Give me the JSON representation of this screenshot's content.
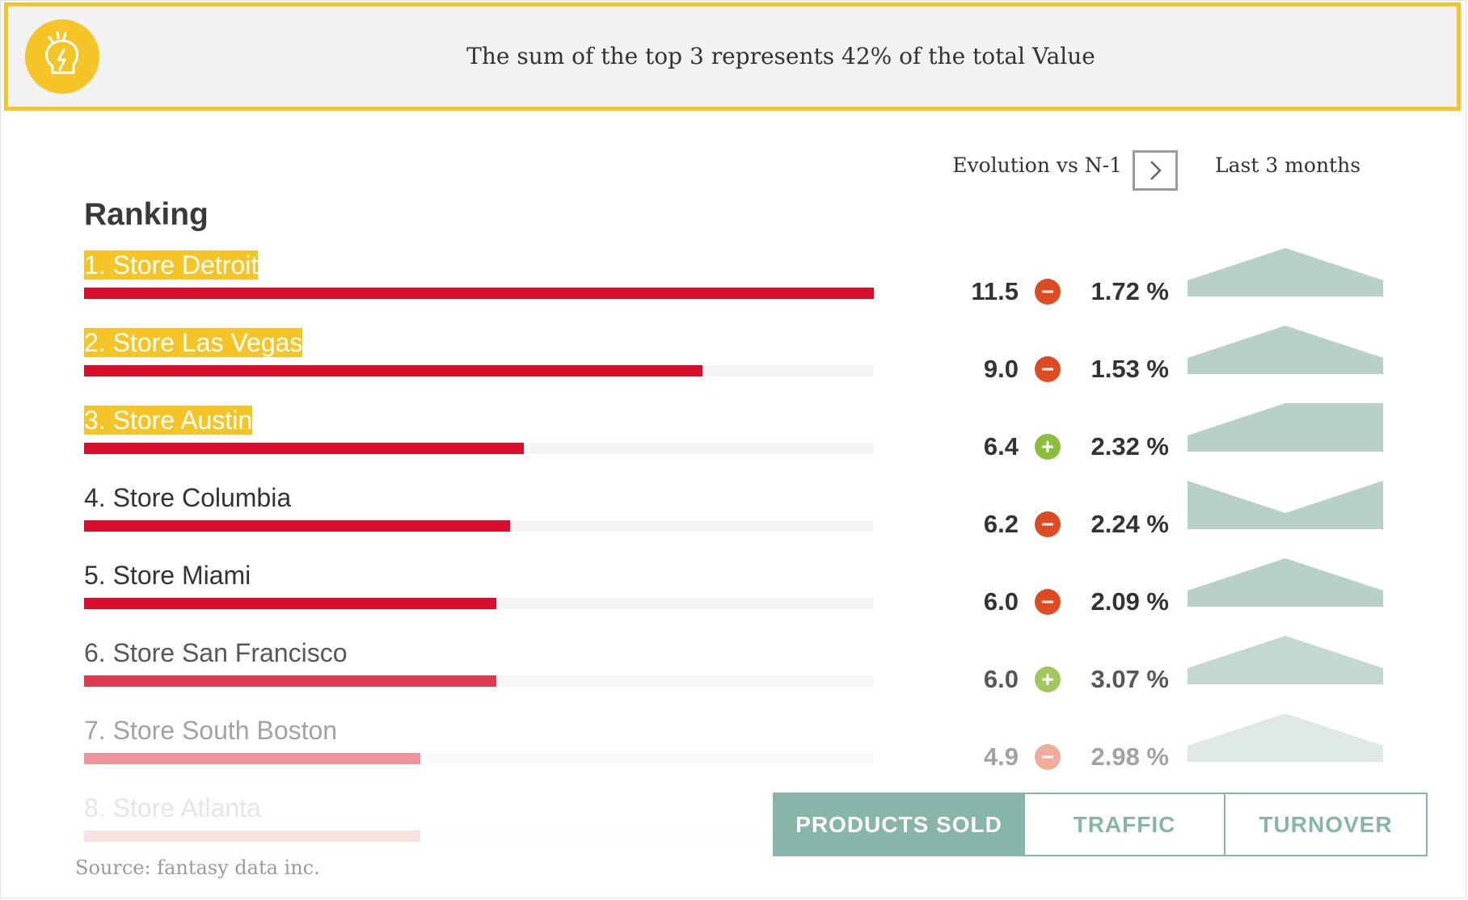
{
  "banner": {
    "text": "The sum of the top 3 represents 42% of the total Value",
    "logo_icon": "bulb-idea-icon"
  },
  "controls": {
    "evolution_label": "Evolution vs N-1",
    "evolution_button_icon": "chevron-right-icon",
    "period_label": "Last 3 months"
  },
  "ranking": {
    "title": "Ranking",
    "highlight_color": "#f5c528",
    "bar_color": "#d80f2c",
    "sparkline_color": "#b7d0c8",
    "positive_color": "#8cbd3c",
    "negative_color": "#de4a22",
    "max_value": 11.5,
    "rows": [
      {
        "label": "1. Store Detroit",
        "value": 11.5,
        "value_text": "11.5",
        "trend": "negative",
        "pct_text": "1.72 %",
        "highlighted": true,
        "opacity": 1.0,
        "spark": [
          0,
          1,
          0
        ]
      },
      {
        "label": "2. Store Las Vegas",
        "value": 9.0,
        "value_text": "9.0",
        "trend": "negative",
        "pct_text": "1.53 %",
        "highlighted": true,
        "opacity": 1.0,
        "spark": [
          0,
          1,
          0
        ]
      },
      {
        "label": "3. Store Austin",
        "value": 6.4,
        "value_text": "6.4",
        "trend": "positive",
        "pct_text": "2.32 %",
        "highlighted": true,
        "opacity": 1.0,
        "spark": [
          0,
          1,
          1
        ]
      },
      {
        "label": "4. Store Columbia",
        "value": 6.2,
        "value_text": "6.2",
        "trend": "negative",
        "pct_text": "2.24 %",
        "highlighted": false,
        "opacity": 1.0,
        "spark": [
          1,
          0,
          1
        ]
      },
      {
        "label": "5. Store Miami",
        "value": 6.0,
        "value_text": "6.0",
        "trend": "negative",
        "pct_text": "2.09 %",
        "highlighted": false,
        "opacity": 1.0,
        "spark": [
          0,
          1,
          0
        ]
      },
      {
        "label": "6. Store San Francisco",
        "value": 6.0,
        "value_text": "6.0",
        "trend": "positive",
        "pct_text": "3.07 %",
        "highlighted": false,
        "opacity": 0.82,
        "spark": [
          0,
          1,
          0
        ]
      },
      {
        "label": "7. Store South Boston",
        "value": 4.9,
        "value_text": "4.9",
        "trend": "negative",
        "pct_text": "2.98 %",
        "highlighted": false,
        "opacity": 0.45,
        "spark": [
          0,
          1,
          0
        ]
      },
      {
        "label": "8. Store Atlanta",
        "value": 4.9,
        "highlighted": false,
        "opacity": 0.12
      }
    ]
  },
  "source": "Source: fantasy data inc.",
  "tabs": [
    {
      "label": "PRODUCTS SOLD",
      "active": true
    },
    {
      "label": "TRAFFIC",
      "active": false
    },
    {
      "label": "TURNOVER",
      "active": false
    }
  ]
}
